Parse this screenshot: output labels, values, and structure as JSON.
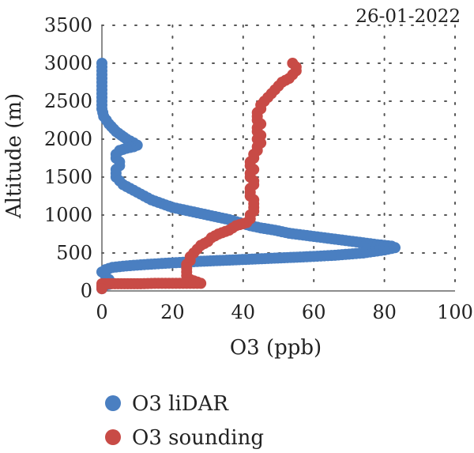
{
  "chart_data": {
    "type": "scatter",
    "annotation": "26-01-2022",
    "xlabel": "O3 (ppb)",
    "ylabel": "Altitude (m)",
    "xlim": [
      0,
      100
    ],
    "ylim": [
      0,
      3500
    ],
    "xticks": [
      "0",
      "20",
      "40",
      "60",
      "80",
      "100"
    ],
    "yticks": [
      "0",
      "500",
      "1000",
      "1500",
      "2000",
      "2500",
      "3000",
      "3500"
    ],
    "grid": "dotted",
    "legend_position": "bottom",
    "series": [
      {
        "name": "O3 liDAR",
        "color": "#4a7fc1",
        "points": [
          [
            0,
            3000
          ],
          [
            0,
            2900
          ],
          [
            0,
            2800
          ],
          [
            0,
            2700
          ],
          [
            0,
            2600
          ],
          [
            0,
            2500
          ],
          [
            0,
            2400
          ],
          [
            0.5,
            2300
          ],
          [
            2,
            2200
          ],
          [
            4,
            2100
          ],
          [
            7,
            2000
          ],
          [
            9,
            1950
          ],
          [
            10,
            1920
          ],
          [
            9,
            1900
          ],
          [
            7,
            1880
          ],
          [
            5,
            1850
          ],
          [
            4,
            1800
          ],
          [
            4,
            1750
          ],
          [
            5,
            1700
          ],
          [
            5,
            1650
          ],
          [
            4,
            1600
          ],
          [
            4,
            1550
          ],
          [
            4,
            1500
          ],
          [
            5,
            1450
          ],
          [
            6,
            1400
          ],
          [
            8,
            1350
          ],
          [
            10,
            1300
          ],
          [
            12,
            1250
          ],
          [
            14,
            1200
          ],
          [
            17,
            1150
          ],
          [
            20,
            1100
          ],
          [
            24,
            1060
          ],
          [
            28,
            1020
          ],
          [
            32,
            980
          ],
          [
            36,
            940
          ],
          [
            39,
            900
          ],
          [
            42,
            860
          ],
          [
            45,
            830
          ],
          [
            49,
            800
          ],
          [
            53,
            760
          ],
          [
            58,
            730
          ],
          [
            63,
            700
          ],
          [
            68,
            670
          ],
          [
            73,
            640
          ],
          [
            78,
            610
          ],
          [
            82,
            590
          ],
          [
            83,
            570
          ],
          [
            80,
            540
          ],
          [
            74,
            500
          ],
          [
            66,
            470
          ],
          [
            58,
            450
          ],
          [
            48,
            430
          ],
          [
            38,
            410
          ],
          [
            28,
            390
          ],
          [
            20,
            370
          ],
          [
            13,
            350
          ],
          [
            7,
            330
          ],
          [
            3,
            310
          ],
          [
            1,
            280
          ],
          [
            0,
            250
          ],
          [
            1,
            200
          ],
          [
            2,
            150
          ],
          [
            3,
            100
          ],
          [
            0,
            60
          ],
          [
            0,
            30
          ]
        ]
      },
      {
        "name": "O3 sounding",
        "color": "#c84b46",
        "points": [
          [
            54,
            3000
          ],
          [
            55,
            2950
          ],
          [
            55,
            2900
          ],
          [
            54,
            2850
          ],
          [
            53,
            2800
          ],
          [
            51,
            2750
          ],
          [
            50,
            2700
          ],
          [
            49,
            2650
          ],
          [
            48,
            2600
          ],
          [
            47,
            2550
          ],
          [
            46,
            2500
          ],
          [
            45,
            2450
          ],
          [
            45,
            2400
          ],
          [
            44,
            2350
          ],
          [
            44,
            2300
          ],
          [
            44,
            2250
          ],
          [
            45,
            2200
          ],
          [
            44,
            2150
          ],
          [
            44,
            2100
          ],
          [
            45,
            2050
          ],
          [
            44,
            2000
          ],
          [
            45,
            1950
          ],
          [
            44,
            1900
          ],
          [
            44,
            1850
          ],
          [
            43,
            1800
          ],
          [
            43,
            1750
          ],
          [
            42,
            1700
          ],
          [
            42,
            1650
          ],
          [
            43,
            1600
          ],
          [
            42,
            1550
          ],
          [
            42,
            1500
          ],
          [
            43,
            1450
          ],
          [
            43,
            1400
          ],
          [
            42,
            1350
          ],
          [
            42,
            1300
          ],
          [
            42,
            1250
          ],
          [
            43,
            1200
          ],
          [
            43,
            1150
          ],
          [
            43,
            1100
          ],
          [
            43,
            1050
          ],
          [
            42,
            1000
          ],
          [
            42,
            950
          ],
          [
            41,
            900
          ],
          [
            38,
            860
          ],
          [
            36,
            800
          ],
          [
            33,
            750
          ],
          [
            31,
            700
          ],
          [
            30,
            650
          ],
          [
            28,
            600
          ],
          [
            27,
            550
          ],
          [
            26,
            500
          ],
          [
            25,
            450
          ],
          [
            25,
            400
          ],
          [
            24,
            350
          ],
          [
            24,
            300
          ],
          [
            24,
            250
          ],
          [
            24,
            200
          ],
          [
            25,
            150
          ],
          [
            28,
            100
          ],
          [
            20,
            100
          ],
          [
            15,
            100
          ],
          [
            11,
            95
          ],
          [
            0,
            95
          ],
          [
            0,
            60
          ],
          [
            0,
            30
          ]
        ]
      }
    ]
  }
}
